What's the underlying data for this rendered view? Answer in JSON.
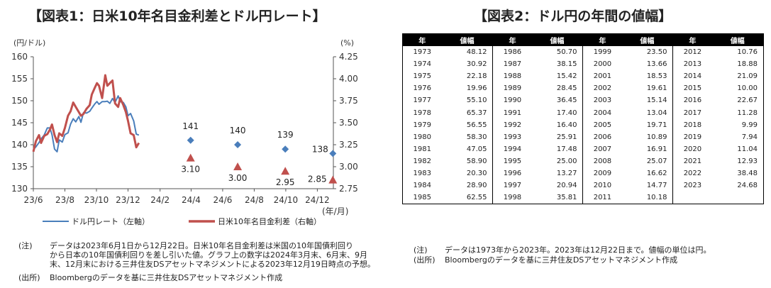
{
  "left_panel": {
    "title": "【図表1：日米10年名目金利差とドル円レート】",
    "notes": [
      {
        "label": "(注)",
        "lines": [
          "データは2023年6月1日から12月22日。日米10年名目金利差は米国の10年国債利回り",
          "から日本の10年国債利回りを差し引いた値。グラフ上の数字は2024年3月末、6月末、9月",
          "末、12月末における三井住友DSアセットマネジメントによる2023年12月19日時点の予想。"
        ]
      },
      {
        "label": "(出所)",
        "lines": [
          "Bloombergのデータを基に三井住友DSアセットマネジメント作成"
        ]
      }
    ]
  },
  "right_panel": {
    "title": "【図表2：ドル円の年間の値幅】",
    "table_header": [
      "年",
      "値幅"
    ],
    "notes": [
      {
        "label": "(注)",
        "lines": [
          "データは1973年から2023年。2023年は12月22日まで。値幅の単位は円。"
        ]
      },
      {
        "label": "(出所)",
        "lines": [
          "Bloombergのデータを基に三井住友DSアセットマネジメント作成"
        ]
      }
    ],
    "columns": [
      [
        [
          "1973",
          "48.12"
        ],
        [
          "1974",
          "30.92"
        ],
        [
          "1975",
          "22.18"
        ],
        [
          "1976",
          "19.96"
        ],
        [
          "1977",
          "55.10"
        ],
        [
          "1978",
          "65.37"
        ],
        [
          "1979",
          "56.55"
        ],
        [
          "1980",
          "58.30"
        ],
        [
          "1981",
          "47.05"
        ],
        [
          "1982",
          "58.90"
        ],
        [
          "1983",
          "20.30"
        ],
        [
          "1984",
          "28.90"
        ],
        [
          "1985",
          "62.55"
        ]
      ],
      [
        [
          "1986",
          "50.70"
        ],
        [
          "1987",
          "38.15"
        ],
        [
          "1988",
          "15.42"
        ],
        [
          "1989",
          "28.45"
        ],
        [
          "1990",
          "36.45"
        ],
        [
          "1991",
          "17.40"
        ],
        [
          "1992",
          "16.40"
        ],
        [
          "1993",
          "25.91"
        ],
        [
          "1994",
          "17.48"
        ],
        [
          "1995",
          "25.00"
        ],
        [
          "1996",
          "13.27"
        ],
        [
          "1997",
          "20.94"
        ],
        [
          "1998",
          "35.81"
        ]
      ],
      [
        [
          "1999",
          "23.50"
        ],
        [
          "2000",
          "13.66"
        ],
        [
          "2001",
          "18.53"
        ],
        [
          "2002",
          "19.61"
        ],
        [
          "2003",
          "15.14"
        ],
        [
          "2004",
          "13.04"
        ],
        [
          "2005",
          "19.71"
        ],
        [
          "2006",
          "10.89"
        ],
        [
          "2007",
          "16.91"
        ],
        [
          "2008",
          "25.07"
        ],
        [
          "2009",
          "16.62"
        ],
        [
          "2010",
          "14.77"
        ],
        [
          "2011",
          "10.18"
        ]
      ],
      [
        [
          "2012",
          "10.76"
        ],
        [
          "2013",
          "18.88"
        ],
        [
          "2014",
          "21.09"
        ],
        [
          "2015",
          "10.00"
        ],
        [
          "2016",
          "22.67"
        ],
        [
          "2017",
          "11.28"
        ],
        [
          "2018",
          "9.99"
        ],
        [
          "2019",
          "7.94"
        ],
        [
          "2020",
          "11.04"
        ],
        [
          "2021",
          "12.93"
        ],
        [
          "2022",
          "38.48"
        ],
        [
          "2023",
          "24.68"
        ],
        [
          "",
          ""
        ]
      ]
    ]
  },
  "chart_data": {
    "type": "line",
    "y_left": {
      "unit_label": "(円/ドル)",
      "min": 130,
      "max": 160,
      "ticks": [
        "130",
        "135",
        "140",
        "145",
        "150",
        "155",
        "160"
      ]
    },
    "y_right": {
      "unit_label": "(%)",
      "min": 2.75,
      "max": 4.25,
      "ticks": [
        "2.75",
        "3.00",
        "3.25",
        "3.50",
        "3.75",
        "4.00",
        "4.25"
      ]
    },
    "x_axis": {
      "unit_label": "(年/月)",
      "ticks": [
        "23/6",
        "23/8",
        "23/10",
        "23/12",
        "24/2",
        "24/4",
        "24/6",
        "24/8",
        "24/10",
        "24/12"
      ]
    },
    "grid": false,
    "legend_position": "bottom",
    "series": [
      {
        "name": "ドル円レート（左軸）",
        "axis": "left",
        "color": "#4a7ebb",
        "x": [
          "2023-06-01",
          "2023-06-06",
          "2023-06-12",
          "2023-06-16",
          "2023-06-22",
          "2023-06-28",
          "2023-07-03",
          "2023-07-07",
          "2023-07-12",
          "2023-07-17",
          "2023-07-21",
          "2023-07-27",
          "2023-08-01",
          "2023-08-07",
          "2023-08-12",
          "2023-08-17",
          "2023-08-22",
          "2023-08-28",
          "2023-09-01",
          "2023-09-06",
          "2023-09-12",
          "2023-09-18",
          "2023-09-22",
          "2023-09-28",
          "2023-10-02",
          "2023-10-06",
          "2023-10-12",
          "2023-10-18",
          "2023-10-22",
          "2023-10-27",
          "2023-11-01",
          "2023-11-06",
          "2023-11-12",
          "2023-11-16",
          "2023-11-22",
          "2023-11-27",
          "2023-12-01",
          "2023-12-06",
          "2023-12-12",
          "2023-12-17",
          "2023-12-22"
        ],
        "y": [
          138.9,
          139.5,
          140.5,
          141.3,
          142.2,
          143.8,
          143.8,
          142.3,
          139.0,
          138.4,
          141.1,
          140.6,
          142.3,
          142.7,
          144.7,
          145.9,
          145.2,
          146.4,
          145.1,
          147.3,
          147.2,
          147.6,
          148.3,
          149.3,
          149.8,
          149.2,
          149.8,
          149.8,
          149.9,
          149.4,
          150.5,
          149.6,
          151.1,
          149.8,
          149.6,
          148.6,
          146.6,
          147.1,
          145.4,
          142.4,
          142.2
        ]
      },
      {
        "name": "日米10年名目金利差（右軸）",
        "axis": "right",
        "color": "#c0504d",
        "x": [
          "2023-06-01",
          "2023-06-06",
          "2023-06-12",
          "2023-06-16",
          "2023-06-22",
          "2023-06-28",
          "2023-07-03",
          "2023-07-07",
          "2023-07-12",
          "2023-07-17",
          "2023-07-21",
          "2023-07-27",
          "2023-08-01",
          "2023-08-07",
          "2023-08-12",
          "2023-08-17",
          "2023-08-22",
          "2023-08-28",
          "2023-09-01",
          "2023-09-06",
          "2023-09-12",
          "2023-09-18",
          "2023-09-22",
          "2023-09-28",
          "2023-10-02",
          "2023-10-06",
          "2023-10-12",
          "2023-10-18",
          "2023-10-22",
          "2023-10-27",
          "2023-11-01",
          "2023-11-06",
          "2023-11-12",
          "2023-11-16",
          "2023-11-22",
          "2023-11-27",
          "2023-12-01",
          "2023-12-06",
          "2023-12-12",
          "2023-12-17",
          "2023-12-22"
        ],
        "y": [
          3.17,
          3.29,
          3.36,
          3.27,
          3.35,
          3.37,
          3.42,
          3.48,
          3.36,
          3.28,
          3.38,
          3.35,
          3.44,
          3.58,
          3.63,
          3.73,
          3.68,
          3.62,
          3.58,
          3.6,
          3.66,
          3.7,
          3.82,
          3.9,
          3.95,
          3.92,
          3.78,
          4.04,
          3.92,
          3.95,
          3.98,
          3.72,
          3.68,
          3.78,
          3.7,
          3.62,
          3.52,
          3.38,
          3.36,
          3.22,
          3.27
        ]
      }
    ],
    "forecasts": [
      {
        "x": "2024-03-31",
        "usdjpy": 141,
        "usdjpy_label": "141",
        "spread": 3.1,
        "spread_label": "3.10"
      },
      {
        "x": "2024-06-30",
        "usdjpy": 140,
        "usdjpy_label": "140",
        "spread": 3.0,
        "spread_label": "3.00"
      },
      {
        "x": "2024-09-30",
        "usdjpy": 139,
        "usdjpy_label": "139",
        "spread": 2.95,
        "spread_label": "2.95"
      },
      {
        "x": "2024-12-31",
        "usdjpy": 138,
        "usdjpy_label": "138",
        "spread": 2.85,
        "spread_label": "2.85"
      }
    ]
  }
}
